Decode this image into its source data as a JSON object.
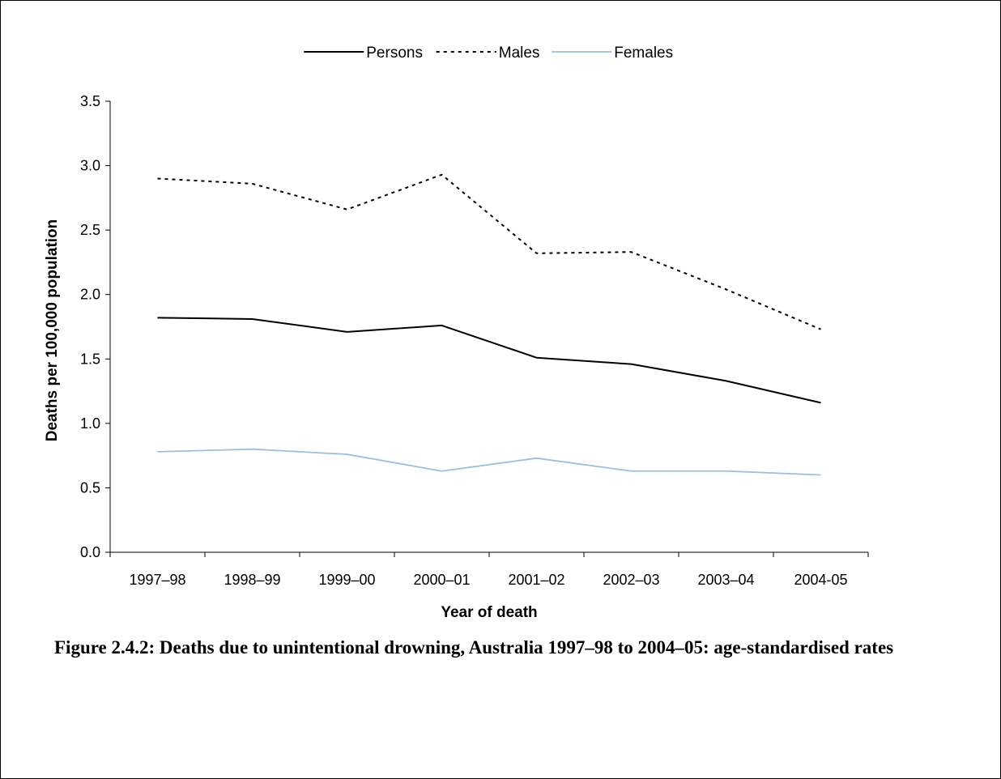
{
  "caption": "Figure 2.4.2: Deaths due to unintentional drowning, Australia 1997–98 to 2004–05: age-standardised rates",
  "chart_data": {
    "type": "line",
    "title": "",
    "xlabel": "Year of death",
    "ylabel": "Deaths per 100,000 population",
    "ylim": [
      0,
      3.5
    ],
    "yticks": [
      "0.0",
      "0.5",
      "1.0",
      "1.5",
      "2.0",
      "2.5",
      "3.0",
      "3.5"
    ],
    "categories": [
      "1997–98",
      "1998–99",
      "1999–00",
      "2000–01",
      "2001–02",
      "2002–03",
      "2003–04",
      "2004-05"
    ],
    "legend_position": "top-center",
    "grid": false,
    "series": [
      {
        "name": "Persons",
        "color": "#000000",
        "dash": "solid",
        "values": [
          1.82,
          1.81,
          1.71,
          1.76,
          1.51,
          1.46,
          1.33,
          1.16
        ]
      },
      {
        "name": "Males",
        "color": "#000000",
        "dash": "dotted",
        "values": [
          2.9,
          2.86,
          2.66,
          2.93,
          2.32,
          2.33,
          2.04,
          1.73
        ]
      },
      {
        "name": "Females",
        "color": "#9bbfe0",
        "dash": "solid",
        "values": [
          0.78,
          0.8,
          0.76,
          0.63,
          0.73,
          0.63,
          0.63,
          0.6
        ]
      }
    ]
  }
}
